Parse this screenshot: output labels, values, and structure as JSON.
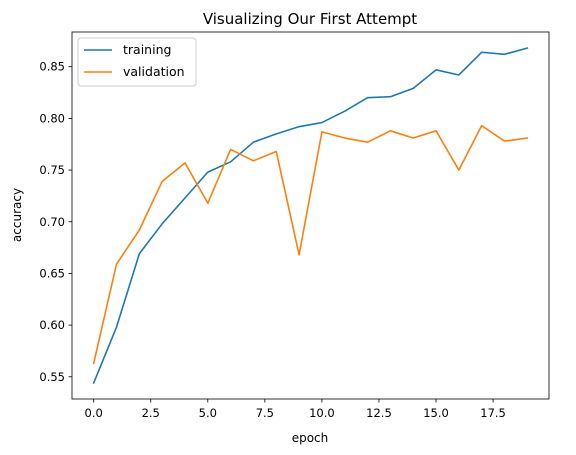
{
  "chart_data": {
    "type": "line",
    "title": "Visualizing Our First Attempt",
    "xlabel": "epoch",
    "ylabel": "accuracy",
    "xlim": [
      -0.95,
      19.95
    ],
    "ylim": [
      0.5285,
      0.8836
    ],
    "xticks": [
      0.0,
      2.5,
      5.0,
      7.5,
      10.0,
      12.5,
      15.0,
      17.5
    ],
    "xtick_labels": [
      "0.0",
      "2.5",
      "5.0",
      "7.5",
      "10.0",
      "12.5",
      "15.0",
      "17.5"
    ],
    "yticks": [
      0.55,
      0.6,
      0.65,
      0.7,
      0.75,
      0.8,
      0.85
    ],
    "ytick_labels": [
      "0.55",
      "0.60",
      "0.65",
      "0.70",
      "0.75",
      "0.80",
      "0.85"
    ],
    "grid": false,
    "legend_position": "top-left",
    "x": [
      0,
      1,
      2,
      3,
      4,
      5,
      6,
      7,
      8,
      9,
      10,
      11,
      12,
      13,
      14,
      15,
      16,
      17,
      18,
      19
    ],
    "series": [
      {
        "name": "training",
        "color": "#1f77b4",
        "values": [
          0.544,
          0.598,
          0.669,
          0.698,
          0.723,
          0.748,
          0.758,
          0.777,
          0.785,
          0.792,
          0.796,
          0.807,
          0.82,
          0.821,
          0.829,
          0.847,
          0.842,
          0.864,
          0.862,
          0.868
        ]
      },
      {
        "name": "validation",
        "color": "#ff7f0e",
        "values": [
          0.563,
          0.659,
          0.692,
          0.739,
          0.757,
          0.718,
          0.77,
          0.759,
          0.768,
          0.668,
          0.787,
          0.781,
          0.777,
          0.788,
          0.781,
          0.788,
          0.75,
          0.793,
          0.778,
          0.781
        ]
      }
    ]
  }
}
